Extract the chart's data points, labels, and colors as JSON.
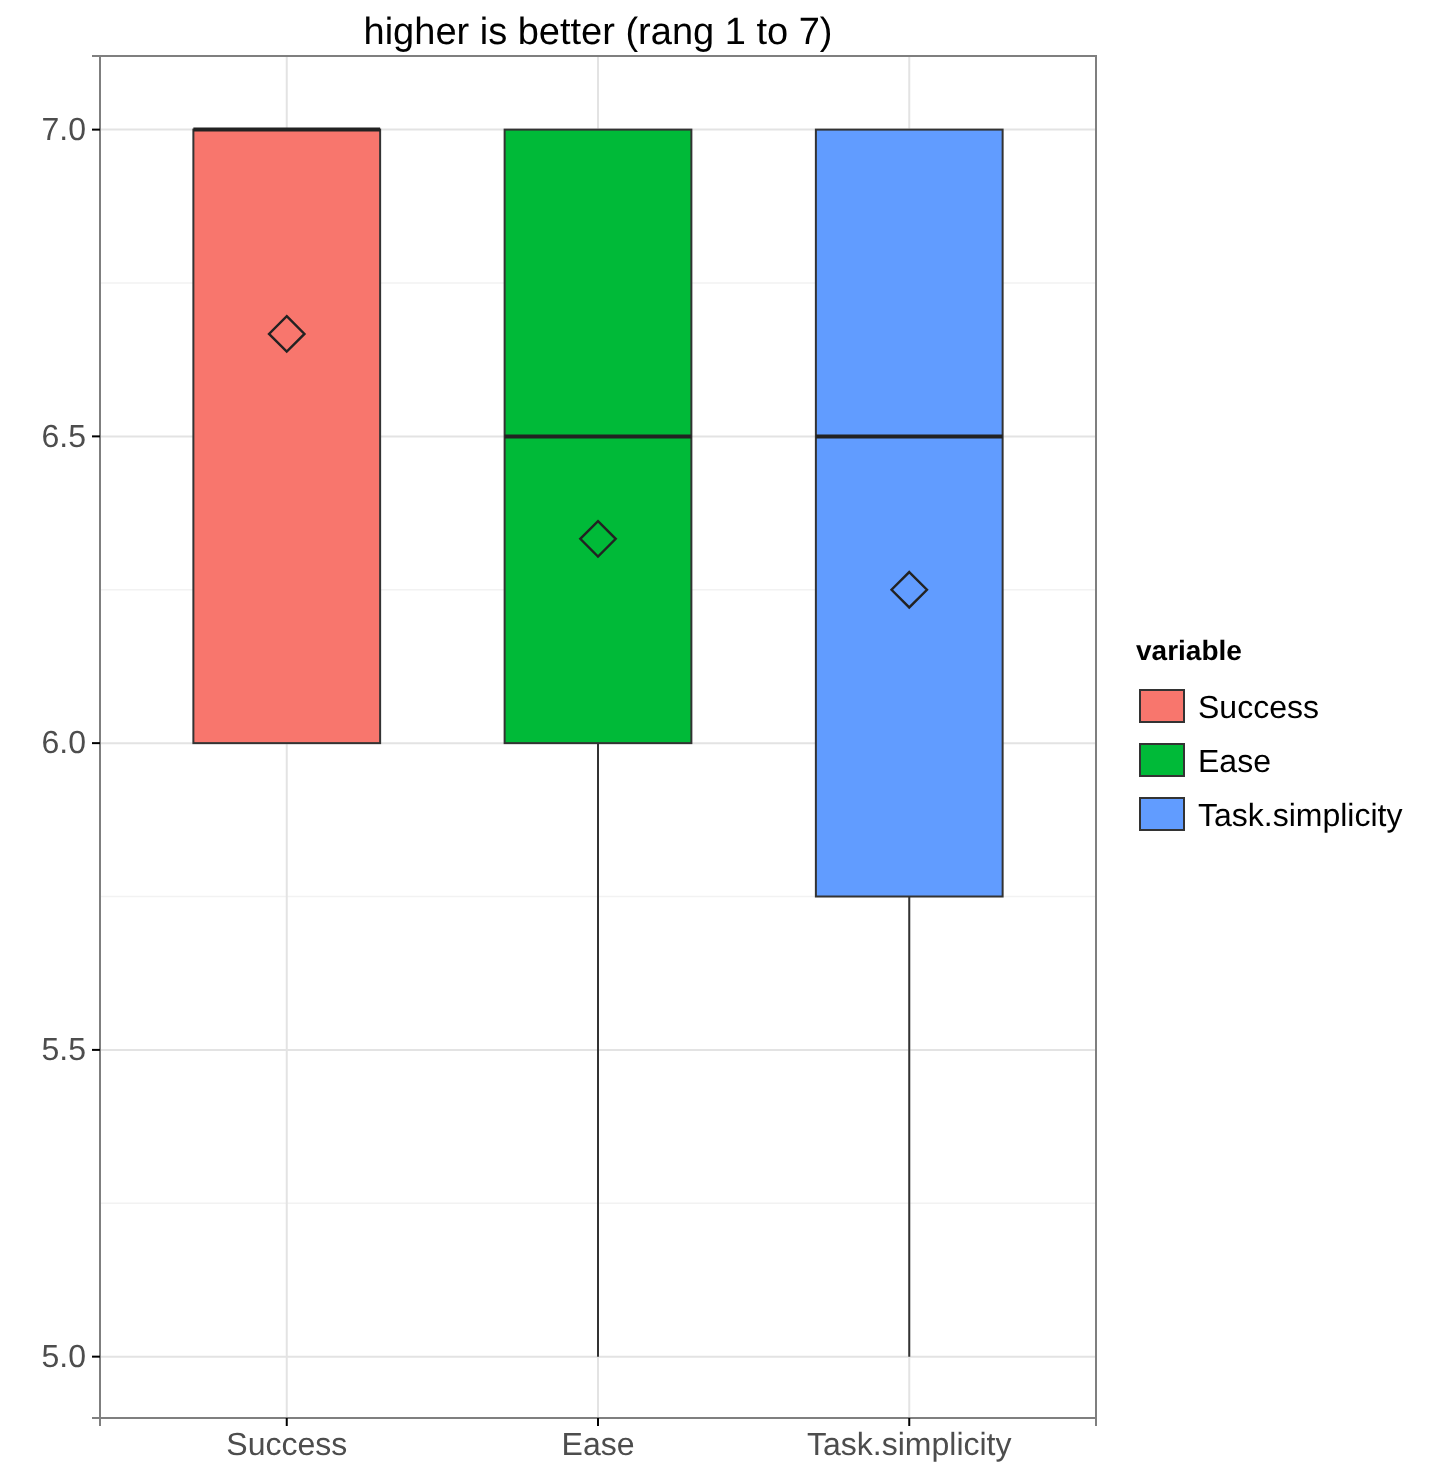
{
  "chart_data": {
    "type": "box",
    "title": "higher is better (rang 1 to 7)",
    "categories": [
      "Success",
      "Ease",
      "Task.simplicity"
    ],
    "series": [
      {
        "name": "Success",
        "color": "#f8766d",
        "boxes": [
          {
            "low": 6,
            "q1": 6,
            "median": 7,
            "q3": 7,
            "high": 7,
            "mean": 6.667
          },
          null,
          null
        ]
      },
      {
        "name": "Ease",
        "color": "#00ba38",
        "boxes": [
          null,
          {
            "low": 5,
            "q1": 6,
            "median": 6.5,
            "q3": 7,
            "high": 7,
            "mean": 6.333
          },
          null
        ]
      },
      {
        "name": "Task.simplicity",
        "color": "#619cff",
        "boxes": [
          null,
          null,
          {
            "low": 5,
            "q1": 5.75,
            "median": 6.5,
            "q3": 7,
            "high": 7,
            "mean": 6.25
          }
        ]
      }
    ],
    "marker": "diamond",
    "legend": "right",
    "legend_title": "variable",
    "ylim": [
      4.9,
      7.12
    ],
    "yticks": [
      {
        "value": 5,
        "label": "5.0"
      },
      {
        "value": 5.5,
        "label": "5.5"
      },
      {
        "value": 6,
        "label": "6.0"
      },
      {
        "value": 6.5,
        "label": "6.5"
      },
      {
        "value": 7,
        "label": "7.0"
      }
    ],
    "grid": true
  }
}
